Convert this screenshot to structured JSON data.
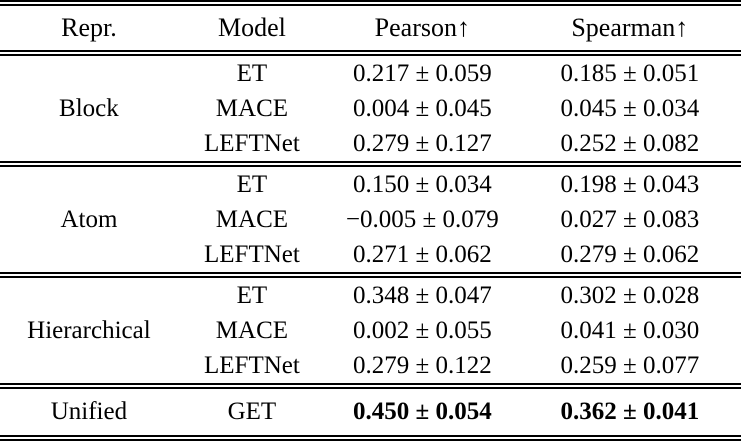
{
  "colors": {
    "background": "#ffffff",
    "text": "#000000",
    "rule": "#000000"
  },
  "table": {
    "headers": {
      "repr": "Repr.",
      "model": "Model",
      "pearson": "Pearson↑",
      "spearman": "Spearman↑"
    },
    "sections": [
      {
        "repr": "Block",
        "rows": [
          {
            "model": "ET",
            "pearson": "0.217 ± 0.059",
            "spearman": "0.185 ± 0.051"
          },
          {
            "model": "MACE",
            "pearson": "0.004 ± 0.045",
            "spearman": "0.045 ± 0.034"
          },
          {
            "model": "LEFTNet",
            "pearson": "0.279 ± 0.127",
            "spearman": "0.252 ± 0.082"
          }
        ]
      },
      {
        "repr": "Atom",
        "rows": [
          {
            "model": "ET",
            "pearson": "0.150 ± 0.034",
            "spearman": "0.198 ± 0.043"
          },
          {
            "model": "MACE",
            "pearson": "−0.005 ± 0.079",
            "spearman": "0.027 ± 0.083"
          },
          {
            "model": "LEFTNet",
            "pearson": "0.271 ± 0.062",
            "spearman": "0.279 ± 0.062"
          }
        ]
      },
      {
        "repr": "Hierarchical",
        "rows": [
          {
            "model": "ET",
            "pearson": "0.348 ± 0.047",
            "spearman": "0.302 ± 0.028"
          },
          {
            "model": "MACE",
            "pearson": "0.002 ± 0.055",
            "spearman": "0.041 ± 0.030"
          },
          {
            "model": "LEFTNet",
            "pearson": "0.279 ± 0.122",
            "spearman": "0.259 ± 0.077"
          }
        ]
      },
      {
        "repr": "Unified",
        "rows": [
          {
            "model": "GET",
            "pearson": "0.450 ± 0.054",
            "spearman": "0.362 ± 0.041"
          }
        ]
      }
    ]
  }
}
